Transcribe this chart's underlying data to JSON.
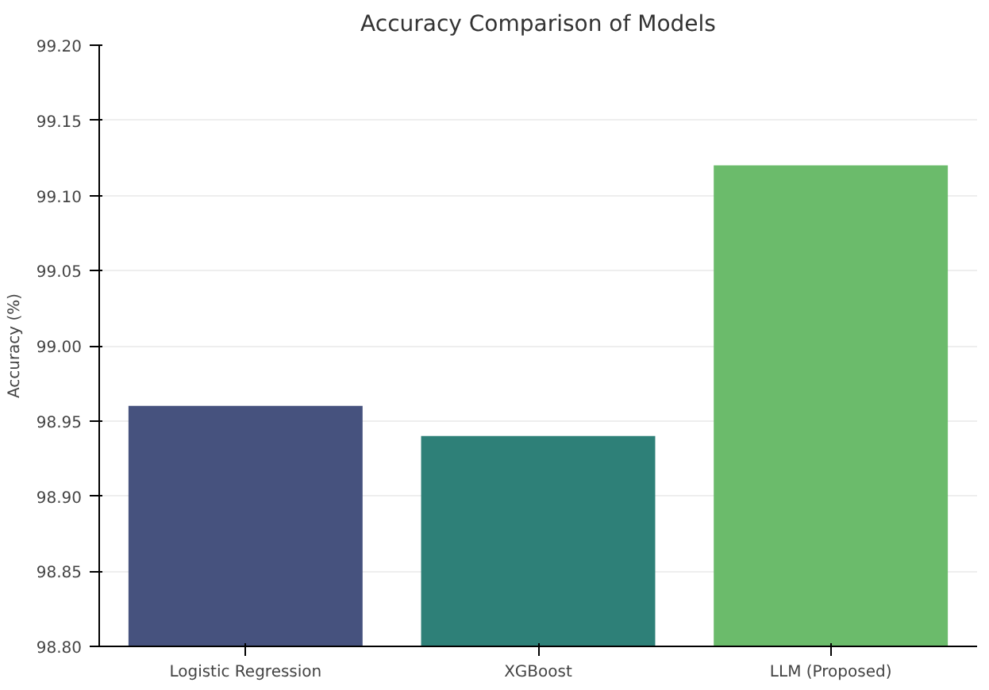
{
  "chart_data": {
    "type": "bar",
    "title": "Accuracy Comparison of Models",
    "ylabel": "Accuracy (%)",
    "categories": [
      "Logistic Regression",
      "XGBoost",
      "LLM (Proposed)"
    ],
    "values": [
      98.96,
      98.94,
      99.12
    ],
    "colors": [
      "#46527e",
      "#2e8078",
      "#6bbb6b"
    ],
    "ylim": [
      98.8,
      99.2
    ],
    "yticks": [
      {
        "value": 98.8,
        "label": "98.80"
      },
      {
        "value": 98.85,
        "label": "98.85"
      },
      {
        "value": 98.9,
        "label": "98.90"
      },
      {
        "value": 98.95,
        "label": "98.95"
      },
      {
        "value": 99.0,
        "label": "99.00"
      },
      {
        "value": 99.05,
        "label": "99.05"
      },
      {
        "value": 99.1,
        "label": "99.10"
      },
      {
        "value": 99.15,
        "label": "99.15"
      },
      {
        "value": 99.2,
        "label": "99.20"
      }
    ],
    "grid": "y"
  }
}
